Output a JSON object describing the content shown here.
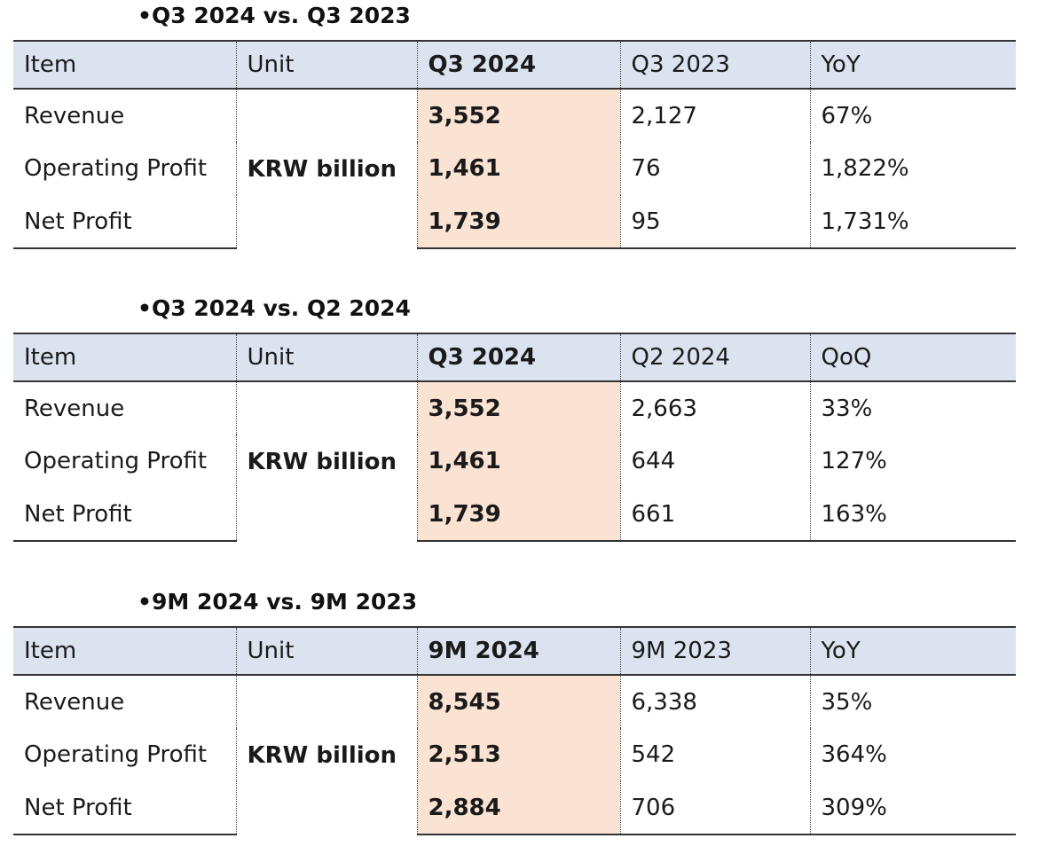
{
  "tables": [
    {
      "title": "Q3 2024 vs. Q3 2023",
      "headers": {
        "item": "Item",
        "unit": "Unit",
        "current": "Q3 2024",
        "previous": "Q3 2023",
        "change": "YoY"
      },
      "unit_value": "KRW billion",
      "rows": [
        {
          "item": "Revenue",
          "current": "3,552",
          "previous": "2,127",
          "change": "67%"
        },
        {
          "item": "Operating Profit",
          "current": "1,461",
          "previous": "76",
          "change": "1,822%"
        },
        {
          "item": "Net Profit",
          "current": "1,739",
          "previous": "95",
          "change": "1,731%"
        }
      ]
    },
    {
      "title": "Q3 2024 vs. Q2 2024",
      "headers": {
        "item": "Item",
        "unit": "Unit",
        "current": "Q3 2024",
        "previous": "Q2 2024",
        "change": "QoQ"
      },
      "unit_value": "KRW billion",
      "rows": [
        {
          "item": "Revenue",
          "current": "3,552",
          "previous": "2,663",
          "change": "33%"
        },
        {
          "item": "Operating Profit",
          "current": "1,461",
          "previous": "644",
          "change": "127%"
        },
        {
          "item": "Net Profit",
          "current": "1,739",
          "previous": "661",
          "change": "163%"
        }
      ]
    },
    {
      "title": "9M 2024 vs. 9M 2023",
      "headers": {
        "item": "Item",
        "unit": "Unit",
        "current": "9M 2024",
        "previous": "9M 2023",
        "change": "YoY"
      },
      "unit_value": "KRW billion",
      "rows": [
        {
          "item": "Revenue",
          "current": "8,545",
          "previous": "6,338",
          "change": "35%"
        },
        {
          "item": "Operating Profit",
          "current": "2,513",
          "previous": "542",
          "change": "364%"
        },
        {
          "item": "Net Profit",
          "current": "2,884",
          "previous": "706",
          "change": "309%"
        }
      ]
    }
  ]
}
